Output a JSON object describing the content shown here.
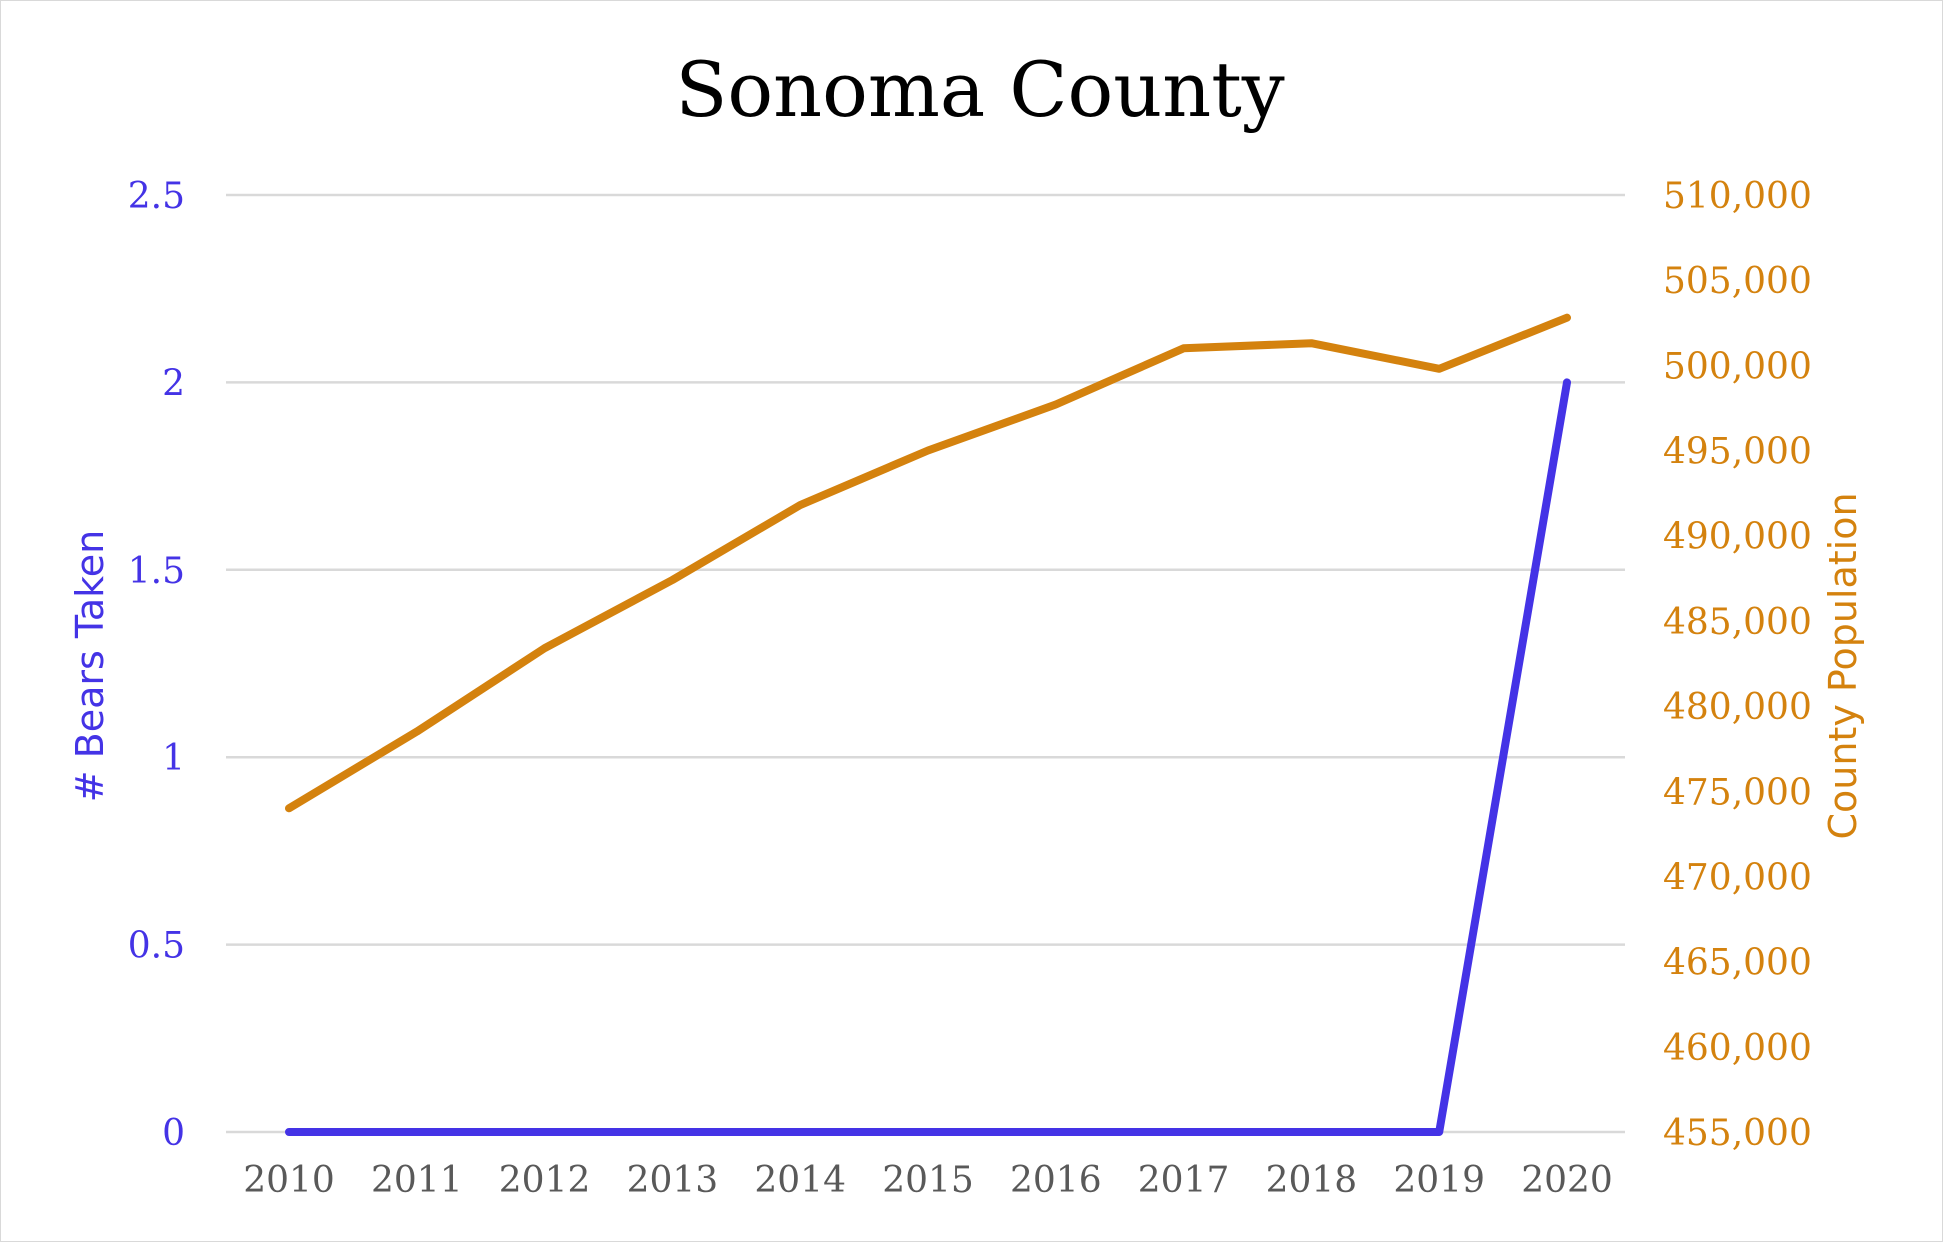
{
  "chart_data": {
    "type": "line",
    "title": "Sonoma County",
    "categories": [
      "2010",
      "2011",
      "2012",
      "2013",
      "2014",
      "2015",
      "2016",
      "2017",
      "2018",
      "2019",
      "2020"
    ],
    "series": [
      {
        "name": "# Bears Taken",
        "axis": "left",
        "color": "#4433e6",
        "values": [
          0,
          0,
          0,
          0,
          0,
          0,
          0,
          0,
          0,
          0,
          2
        ]
      },
      {
        "name": "County Population",
        "axis": "right",
        "color": "#d4820e",
        "values": [
          474000,
          478500,
          483400,
          487400,
          491800,
          495000,
          497700,
          501000,
          501300,
          499800,
          502800
        ]
      }
    ],
    "ylabel": "# Bears Taken",
    "ylabel_right": "County Population",
    "y_left": {
      "min": 0,
      "max": 2.5,
      "ticks": [
        "0",
        "0.5",
        "1",
        "1.5",
        "2",
        "2.5"
      ],
      "tick_values": [
        0,
        0.5,
        1,
        1.5,
        2,
        2.5
      ]
    },
    "y_right": {
      "min": 455000,
      "max": 510000,
      "ticks": [
        "455,000",
        "460,000",
        "465,000",
        "470,000",
        "475,000",
        "480,000",
        "485,000",
        "490,000",
        "495,000",
        "500,000",
        "505,000",
        "510,000"
      ],
      "tick_values": [
        455000,
        460000,
        465000,
        470000,
        475000,
        480000,
        485000,
        490000,
        495000,
        500000,
        505000,
        510000
      ]
    },
    "grid": true,
    "legend": "none"
  },
  "colors": {
    "left_axis": "#4433e6",
    "right_axis": "#d4820e",
    "gridline": "#d9d9d9"
  }
}
